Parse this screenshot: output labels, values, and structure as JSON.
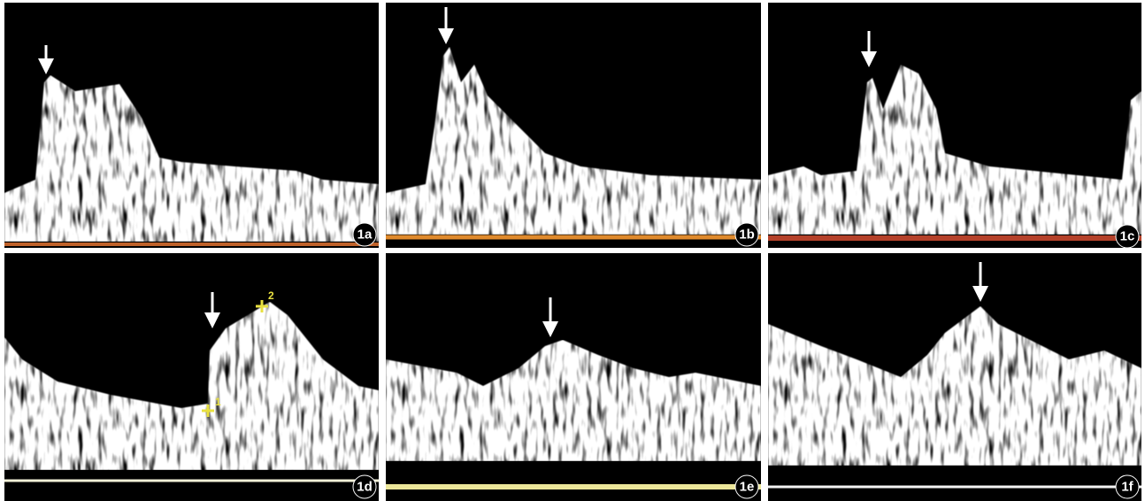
{
  "panels": [
    {
      "label": "1a"
    },
    {
      "label": "1b"
    },
    {
      "label": "1c"
    },
    {
      "label": "1d"
    },
    {
      "label": "1e"
    },
    {
      "label": "1f"
    }
  ],
  "calipers": [
    "1",
    "2"
  ]
}
